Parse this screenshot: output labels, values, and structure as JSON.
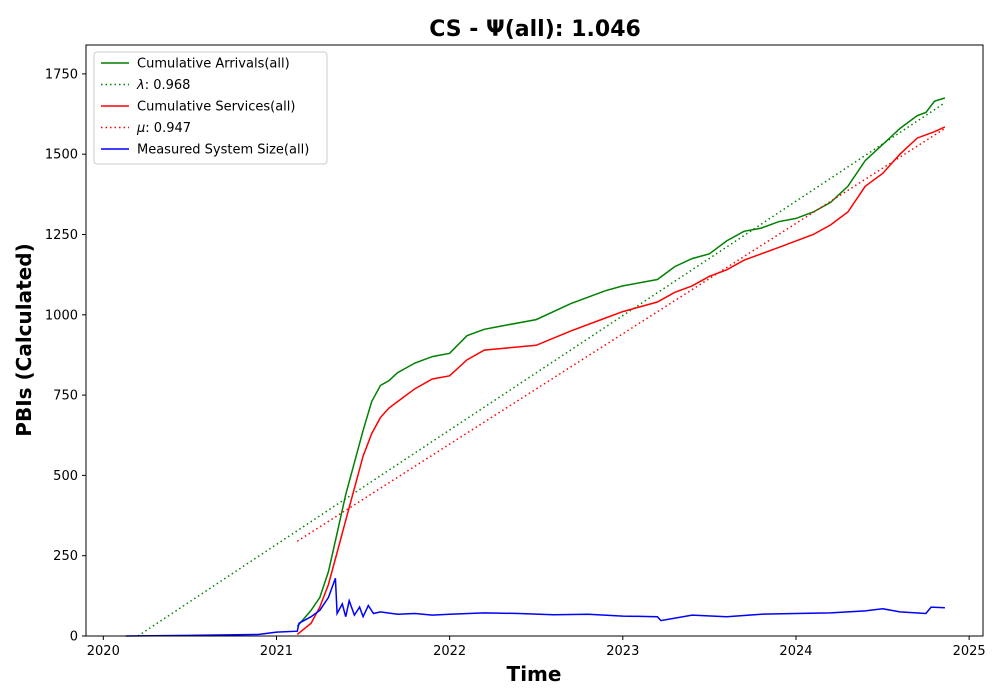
{
  "chart_data": {
    "type": "line",
    "title": "CS -  Ψ(all): 1.046",
    "xlabel": "Time",
    "ylabel": "PBIs (Calculated)",
    "xlim": [
      2019.9,
      2025.08
    ],
    "ylim": [
      0,
      1840
    ],
    "x_ticks": [
      2020,
      2021,
      2022,
      2023,
      2024,
      2025
    ],
    "x_tick_labels": [
      "2020",
      "2021",
      "2022",
      "2023",
      "2024",
      "2025"
    ],
    "y_ticks": [
      0,
      250,
      500,
      750,
      1000,
      1250,
      1500,
      1750
    ],
    "y_tick_labels": [
      "0",
      "250",
      "500",
      "750",
      "1000",
      "1250",
      "1500",
      "1750"
    ],
    "grid": false,
    "legend_position": "upper-left",
    "series": [
      {
        "name": "Cumulative Arrivals(all)",
        "color": "#008000",
        "style": "solid",
        "x": [
          2021.12,
          2021.2,
          2021.25,
          2021.3,
          2021.35,
          2021.4,
          2021.45,
          2021.5,
          2021.55,
          2021.6,
          2021.65,
          2021.7,
          2021.8,
          2021.9,
          2022.0,
          2022.1,
          2022.2,
          2022.3,
          2022.5,
          2022.7,
          2022.9,
          2023.0,
          2023.2,
          2023.3,
          2023.4,
          2023.5,
          2023.6,
          2023.7,
          2023.8,
          2023.9,
          2024.0,
          2024.1,
          2024.2,
          2024.3,
          2024.4,
          2024.5,
          2024.6,
          2024.7,
          2024.75,
          2024.8,
          2024.86
        ],
        "y": [
          30,
          80,
          120,
          200,
          320,
          440,
          540,
          640,
          730,
          780,
          795,
          820,
          850,
          870,
          880,
          935,
          955,
          965,
          985,
          1035,
          1075,
          1090,
          1110,
          1150,
          1175,
          1190,
          1230,
          1260,
          1270,
          1290,
          1300,
          1320,
          1350,
          1400,
          1480,
          1530,
          1580,
          1620,
          1630,
          1665,
          1675
        ]
      },
      {
        "name": "λ: 0.968",
        "legend_symbol": "λ",
        "legend_value": ": 0.968",
        "color": "#008000",
        "style": "dotted",
        "x": [
          2020.2,
          2024.86
        ],
        "y": [
          0,
          1660
        ]
      },
      {
        "name": "Cumulative Services(all)",
        "color": "#ff0000",
        "style": "solid",
        "x": [
          2021.12,
          2021.2,
          2021.25,
          2021.3,
          2021.35,
          2021.4,
          2021.45,
          2021.5,
          2021.55,
          2021.6,
          2021.65,
          2021.7,
          2021.8,
          2021.9,
          2022.0,
          2022.1,
          2022.2,
          2022.3,
          2022.5,
          2022.7,
          2022.9,
          2023.0,
          2023.2,
          2023.3,
          2023.4,
          2023.5,
          2023.6,
          2023.7,
          2023.8,
          2023.9,
          2024.0,
          2024.1,
          2024.2,
          2024.3,
          2024.4,
          2024.5,
          2024.6,
          2024.7,
          2024.8,
          2024.86
        ],
        "y": [
          5,
          40,
          90,
          160,
          260,
          360,
          460,
          560,
          630,
          680,
          710,
          730,
          770,
          800,
          810,
          860,
          890,
          895,
          905,
          950,
          990,
          1010,
          1040,
          1070,
          1090,
          1120,
          1140,
          1170,
          1190,
          1210,
          1230,
          1250,
          1280,
          1320,
          1400,
          1440,
          1500,
          1550,
          1570,
          1585
        ]
      },
      {
        "name": "μ: 0.947",
        "legend_symbol": "μ",
        "legend_value": ": 0.947",
        "color": "#ff0000",
        "style": "dotted",
        "x": [
          2021.12,
          2024.86
        ],
        "y": [
          295,
          1580
        ]
      },
      {
        "name": "Measured System Size(all)",
        "color": "#0000ff",
        "style": "solid",
        "x": [
          2020.13,
          2020.5,
          2020.9,
          2021.0,
          2021.12,
          2021.13,
          2021.2,
          2021.25,
          2021.3,
          2021.34,
          2021.35,
          2021.38,
          2021.4,
          2021.42,
          2021.45,
          2021.48,
          2021.5,
          2021.53,
          2021.56,
          2021.6,
          2021.7,
          2021.8,
          2021.9,
          2022.0,
          2022.2,
          2022.4,
          2022.6,
          2022.8,
          2023.0,
          2023.2,
          2023.22,
          2023.4,
          2023.6,
          2023.8,
          2024.0,
          2024.2,
          2024.4,
          2024.5,
          2024.6,
          2024.75,
          2024.78,
          2024.86
        ],
        "y": [
          0,
          2,
          5,
          12,
          15,
          40,
          60,
          80,
          120,
          180,
          70,
          100,
          60,
          110,
          65,
          90,
          60,
          95,
          70,
          75,
          68,
          70,
          65,
          68,
          72,
          70,
          66,
          68,
          62,
          60,
          48,
          65,
          60,
          68,
          70,
          72,
          78,
          85,
          75,
          70,
          90,
          88
        ]
      }
    ]
  }
}
